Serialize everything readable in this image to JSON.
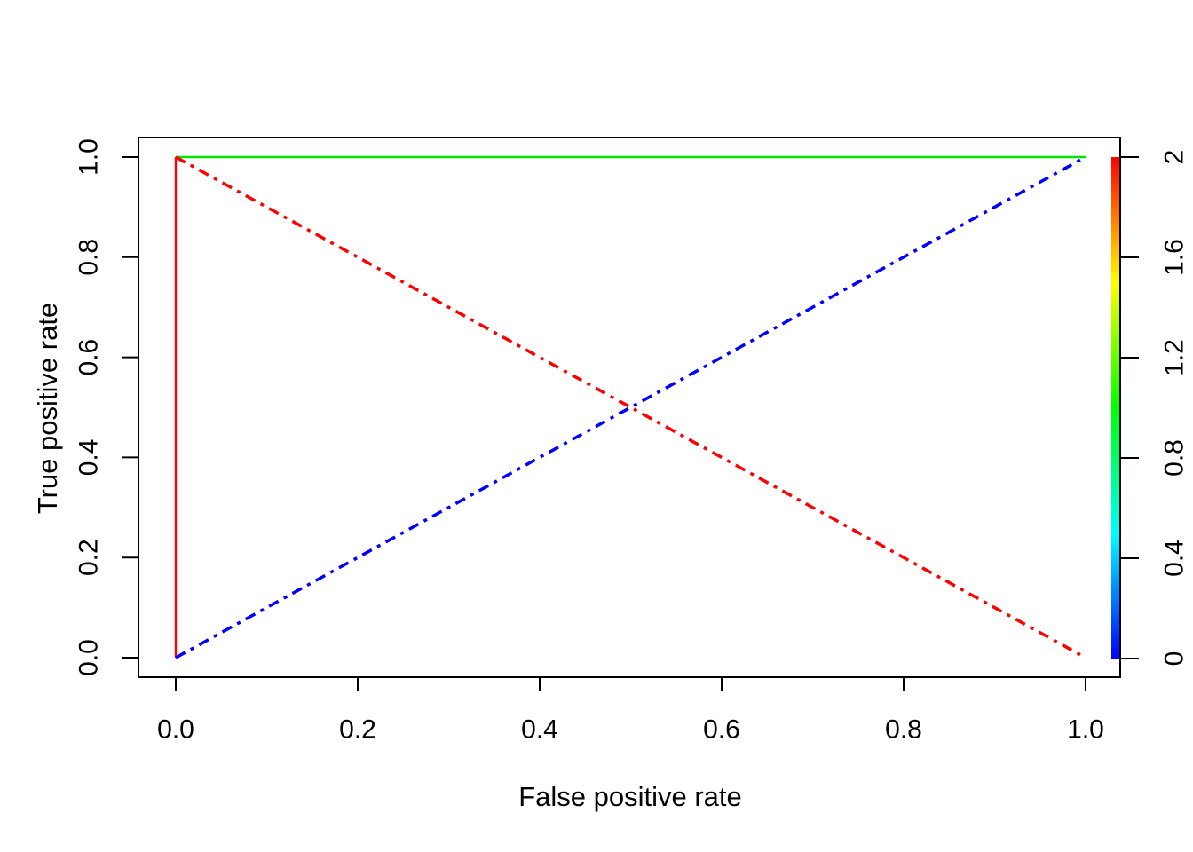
{
  "chart_data": {
    "type": "line",
    "title": "",
    "xlabel": "False positive rate",
    "ylabel": "True positive rate",
    "xlim": [
      0,
      1
    ],
    "ylim": [
      0,
      1
    ],
    "x_ticks": [
      0.0,
      0.2,
      0.4,
      0.6,
      0.8,
      1.0
    ],
    "x_tick_labels": [
      "0.0",
      "0.2",
      "0.4",
      "0.6",
      "0.8",
      "1.0"
    ],
    "y_ticks": [
      0.0,
      0.2,
      0.4,
      0.6,
      0.8,
      1.0
    ],
    "y_tick_labels": [
      "0.0",
      "0.2",
      "0.4",
      "0.6",
      "0.8",
      "1.0"
    ],
    "grid": false,
    "legend": null,
    "axis_color": "#000000",
    "background_color": "#ffffff",
    "series": [
      {
        "name": "red-vertical-segment",
        "color": "#FF0000",
        "line_style": "solid",
        "line_width": 2.4,
        "points": [
          [
            0,
            0
          ],
          [
            0,
            1
          ]
        ]
      },
      {
        "name": "green-top-segment",
        "color": "#00E400",
        "line_style": "solid",
        "line_width": 2.4,
        "points": [
          [
            0,
            1
          ],
          [
            1,
            1
          ]
        ]
      },
      {
        "name": "blue-ascending-diagonal",
        "color": "#0000FF",
        "line_style": "dotdash",
        "line_width": 3.5,
        "points": [
          [
            0,
            0
          ],
          [
            1,
            1
          ]
        ]
      },
      {
        "name": "red-descending-diagonal",
        "color": "#FF0000",
        "line_style": "dotdash",
        "line_width": 3.5,
        "points": [
          [
            0,
            1
          ],
          [
            1,
            0
          ]
        ]
      }
    ],
    "colorbar": {
      "position": "right",
      "min": 0,
      "max": 2,
      "ticks": [
        0,
        0.4,
        0.8,
        1.2,
        1.6,
        2
      ],
      "tick_labels": [
        "0",
        "0.4",
        "0.8",
        "1.2",
        "1.6",
        "2"
      ],
      "gradient_bottom_to_top": [
        "#0000FF",
        "#00FFFF",
        "#00FF00",
        "#FFFF00",
        "#FF0000"
      ]
    }
  }
}
